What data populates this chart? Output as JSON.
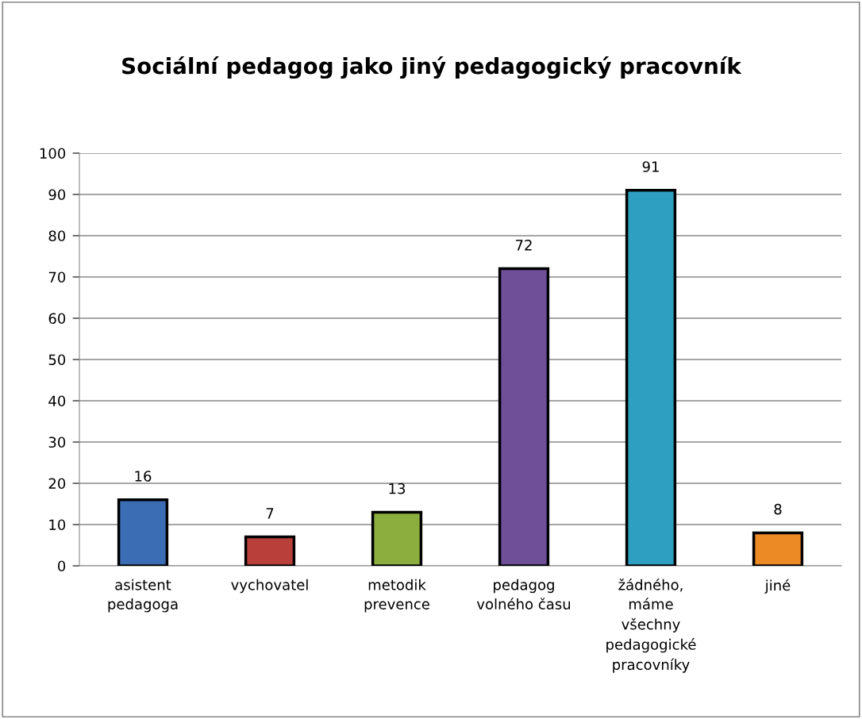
{
  "chart_data": {
    "type": "bar",
    "title": "Sociální pedagog jako jiný pedagogický pracovník",
    "categories": [
      "asistent\npedagoga",
      "vychovatel",
      "metodik\nprevence",
      "pedagog\nvolného času",
      "žádného,\nmáme\nvšechny\npedagogické\npracovníky",
      "jiné"
    ],
    "values": [
      16,
      7,
      13,
      72,
      91,
      8
    ],
    "colors": [
      "#3b6db5",
      "#b9403a",
      "#8bae3f",
      "#6e4f98",
      "#2e9fc0",
      "#ec8a26"
    ],
    "ylim": [
      0,
      100
    ],
    "yticks": [
      0,
      10,
      20,
      30,
      40,
      50,
      60,
      70,
      80,
      90,
      100
    ],
    "grid": "y",
    "data_labels": true,
    "legend": false
  }
}
